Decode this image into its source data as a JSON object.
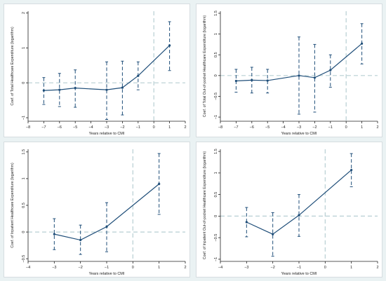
{
  "colors": {
    "line": "#1f4e79",
    "zero_line": "#b7cfd3",
    "axis": "#222222",
    "frame_bg": "#eaf2f3"
  },
  "chart_data": [
    {
      "type": "line",
      "error_bars": true,
      "ylabel": "Coef. of Total Healthcare Expenditure (logarithm)",
      "xlabel": "Years relative to CMI",
      "x": [
        -7,
        -6,
        -5,
        -3,
        -2,
        -1,
        1
      ],
      "y": [
        -0.22,
        -0.2,
        -0.15,
        -0.2,
        -0.14,
        0.2,
        1.07
      ],
      "ci_low": [
        -0.62,
        -0.68,
        -0.7,
        -1.05,
        -0.92,
        -0.2,
        0.35
      ],
      "ci_high": [
        0.15,
        0.27,
        0.37,
        0.6,
        0.62,
        0.6,
        1.75
      ],
      "xlim": [
        -8,
        2
      ],
      "ylim": [
        -1.1,
        2.05
      ],
      "xticks": [
        -8,
        -7,
        -6,
        -5,
        -4,
        -3,
        -2,
        -1,
        0,
        1,
        2
      ],
      "yticks": [
        -1,
        0,
        1,
        2
      ],
      "hline": 0,
      "vline": 0
    },
    {
      "type": "line",
      "error_bars": true,
      "ylabel": "Coef. of Total Out-of-pocket Healthcare Expenditure (logarithm)",
      "xlabel": "Years relative to CMI",
      "x": [
        -7,
        -6,
        -5,
        -3,
        -2,
        -1,
        1
      ],
      "y": [
        -0.13,
        -0.11,
        -0.12,
        0.0,
        -0.05,
        0.13,
        0.77
      ],
      "ci_low": [
        -0.4,
        -0.42,
        -0.42,
        -0.93,
        -0.88,
        -0.28,
        0.28
      ],
      "ci_high": [
        0.15,
        0.2,
        0.15,
        0.93,
        0.75,
        0.5,
        1.25
      ],
      "xlim": [
        -8,
        2
      ],
      "ylim": [
        -1.1,
        1.55
      ],
      "xticks": [
        -8,
        -7,
        -6,
        -5,
        -4,
        -3,
        -2,
        -1,
        0,
        1,
        2
      ],
      "yticks": [
        -1,
        -0.5,
        0,
        0.5,
        1,
        1.5
      ],
      "hline": 0,
      "vline": 0
    },
    {
      "type": "line",
      "error_bars": true,
      "ylabel": "Coef. of Inpatient Healthcare Expenditure (logarithm)",
      "xlabel": "Years relative to CMI",
      "x": [
        -3,
        -2,
        -1,
        1
      ],
      "y": [
        -0.04,
        -0.15,
        0.1,
        0.9
      ],
      "ci_low": [
        -0.33,
        -0.42,
        -0.37,
        0.33
      ],
      "ci_high": [
        0.25,
        0.13,
        0.55,
        1.47
      ],
      "xlim": [
        -4,
        2
      ],
      "ylim": [
        -0.55,
        1.55
      ],
      "xticks": [
        -4,
        -3,
        -2,
        -1,
        0,
        1,
        2
      ],
      "yticks": [
        -0.5,
        0,
        0.5,
        1,
        1.5
      ],
      "hline": 0,
      "vline": 0
    },
    {
      "type": "line",
      "error_bars": true,
      "ylabel": "Coef. of Inpatient Out-of-pocket Healthcare Expenditure (logarithm)",
      "xlabel": "Years relative to CMI",
      "x": [
        -3,
        -2,
        -1,
        1
      ],
      "y": [
        -0.14,
        -0.42,
        0.02,
        1.07
      ],
      "ci_low": [
        -0.48,
        -0.93,
        -0.47,
        0.68
      ],
      "ci_high": [
        0.2,
        0.08,
        0.5,
        1.45
      ],
      "xlim": [
        -4,
        2
      ],
      "ylim": [
        -1.05,
        1.55
      ],
      "xticks": [
        -4,
        -3,
        -2,
        -1,
        0,
        1,
        2
      ],
      "yticks": [
        -1,
        -0.5,
        0,
        0.5,
        1,
        1.5
      ],
      "hline": 0,
      "vline": 0
    }
  ]
}
